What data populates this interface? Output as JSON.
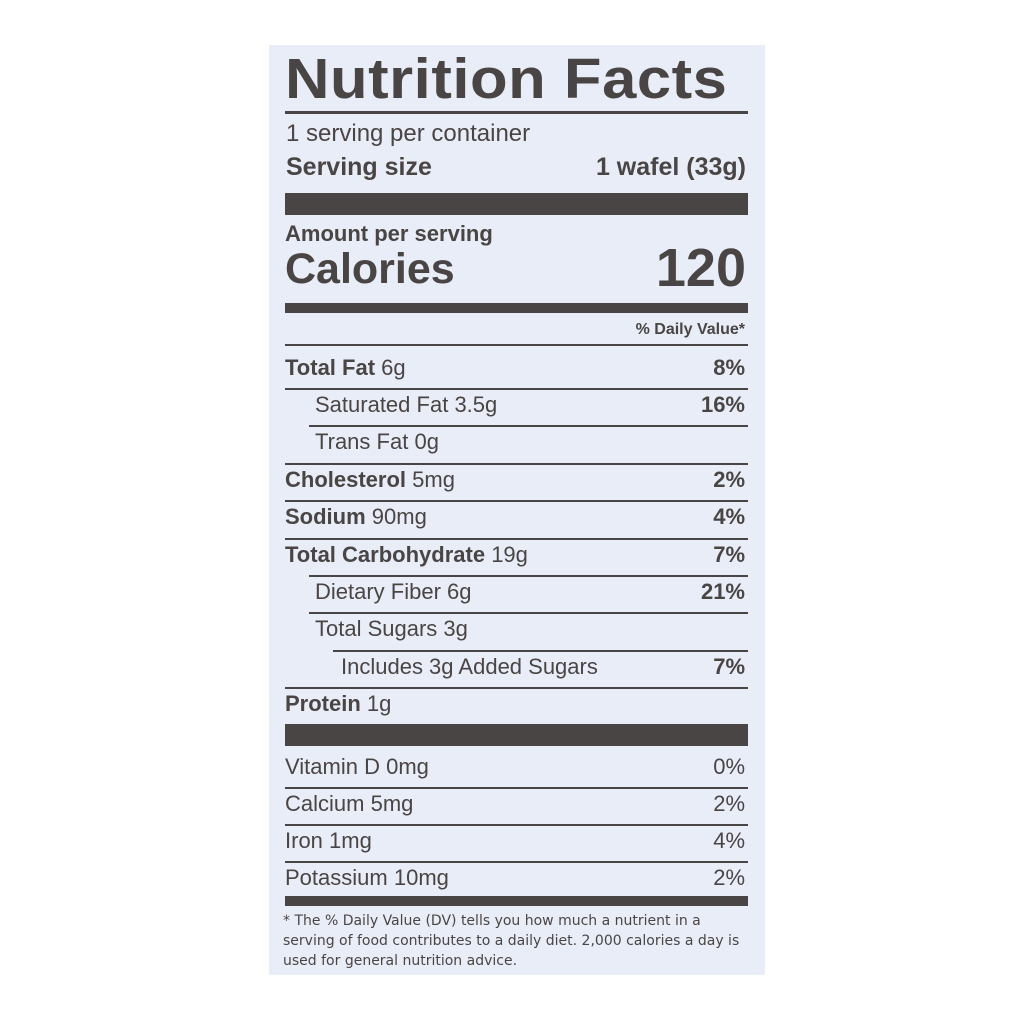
{
  "title": "Nutrition Facts",
  "servings_per_container": "1 serving per container",
  "serving_size_label": "Serving size",
  "serving_size_value": "1 wafel (33g)",
  "amount_per_serving": "Amount per serving",
  "calories_label": "Calories",
  "calories_value": "120",
  "daily_value_header": "% Daily Value*",
  "nutrients": [
    {
      "name": "Total Fat",
      "amount": "6g",
      "dv": "8%"
    },
    {
      "name": "Saturated Fat",
      "amount": "3.5g",
      "dv": "16%"
    },
    {
      "name": "Trans Fat",
      "amount": "0g",
      "dv": ""
    },
    {
      "name": "Cholesterol",
      "amount": "5mg",
      "dv": "2%"
    },
    {
      "name": "Sodium",
      "amount": "90mg",
      "dv": "4%"
    },
    {
      "name": "Total Carbohydrate",
      "amount": "19g",
      "dv": "7%"
    },
    {
      "name": "Dietary Fiber",
      "amount": "6g",
      "dv": "21%"
    },
    {
      "name": "Total Sugars",
      "amount": "3g",
      "dv": ""
    },
    {
      "name": "Includes 3g Added Sugars",
      "amount": "",
      "dv": "7%"
    },
    {
      "name": "Protein",
      "amount": "1g",
      "dv": ""
    }
  ],
  "vitamins": [
    {
      "name": "Vitamin D",
      "amount": "0mg",
      "dv": "0%"
    },
    {
      "name": "Calcium",
      "amount": "5mg",
      "dv": "2%"
    },
    {
      "name": "Iron",
      "amount": "1mg",
      "dv": "4%"
    },
    {
      "name": "Potassium",
      "amount": "10mg",
      "dv": "2%"
    }
  ],
  "footnote": "* The % Daily Value (DV) tells you how much a nutrient in a serving of food contributes to a daily diet. 2,000 calories a day is used for general nutrition advice."
}
